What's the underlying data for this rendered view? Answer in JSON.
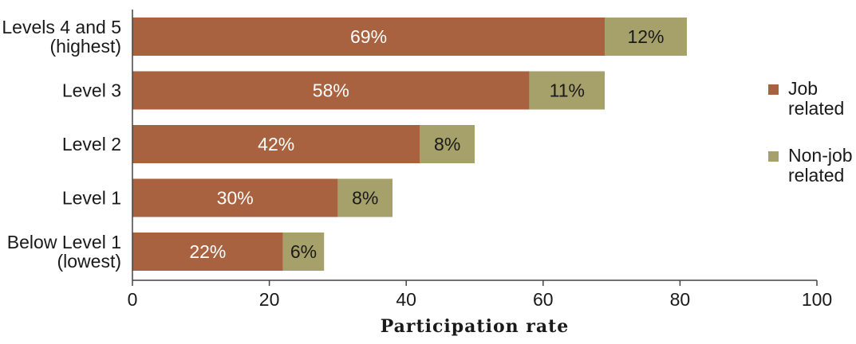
{
  "chart_data": {
    "type": "bar",
    "orientation": "horizontal",
    "stacked": true,
    "categories": [
      [
        "Levels 4 and 5",
        "(highest)"
      ],
      [
        "Level 3"
      ],
      [
        "Level 2"
      ],
      [
        "Level 1"
      ],
      [
        "Below Level 1",
        "(lowest)"
      ]
    ],
    "series": [
      {
        "name": "Job related",
        "legend_lines": [
          "Job",
          "related"
        ],
        "color": "#A8623F",
        "label_color": "#ffffff",
        "values": [
          69,
          58,
          42,
          30,
          22
        ],
        "labels": [
          "69%",
          "58%",
          "42%",
          "30%",
          "22%"
        ]
      },
      {
        "name": "Non-job related",
        "legend_lines": [
          "Non-job",
          "related"
        ],
        "color": "#A6A06A",
        "label_color": "#1a1a1a",
        "values": [
          12,
          11,
          8,
          8,
          6
        ],
        "labels": [
          "12%",
          "11%",
          "8%",
          "8%",
          "6%"
        ]
      }
    ],
    "xlabel": "Participation rate",
    "ylabel": "",
    "xlim": [
      0,
      100
    ],
    "xticks": [
      0,
      20,
      40,
      60,
      80,
      100
    ],
    "grid": false,
    "legend_position": "right"
  }
}
